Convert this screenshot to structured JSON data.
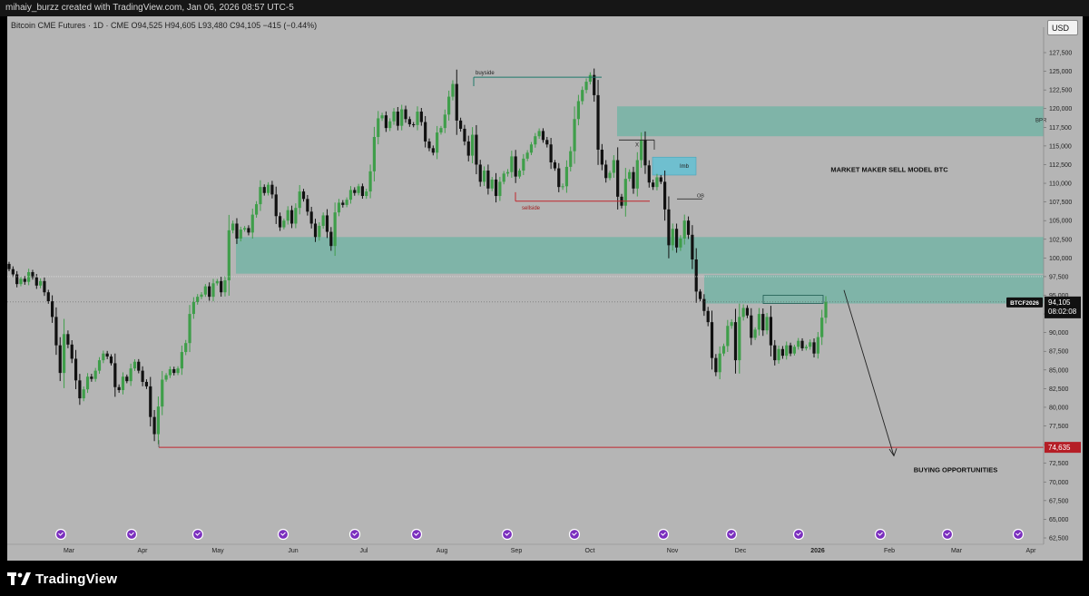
{
  "header": {
    "author_line": "mihaiy_burzz created with TradingView.com, Jan 06, 2026 08:57 UTC-5"
  },
  "symbol": {
    "info_line": "Bitcoin CME Futures · 1D · CME  O94,525  H94,605  L93,480  C94,105  −415 (−0.44%)"
  },
  "currency_button": "USD",
  "footer": {
    "logo_text": "TradingView"
  },
  "chart_data": {
    "type": "candlestick",
    "title": "Bitcoin CME Futures · 1D · CME",
    "ohlc_last": {
      "open": 94525,
      "high": 94605,
      "low": 93480,
      "close": 94105,
      "change": -415,
      "change_pct": -0.44
    },
    "ylim": [
      61500,
      131000
    ],
    "y_ticks": [
      62500,
      65000,
      67500,
      70000,
      72500,
      75000,
      77500,
      80000,
      82500,
      85000,
      87500,
      90000,
      92500,
      95000,
      97500,
      100000,
      102500,
      105000,
      107500,
      110000,
      112500,
      115000,
      117500,
      120000,
      122500,
      125000,
      127500
    ],
    "x_labels": [
      "Mar",
      "Apr",
      "May",
      "Jun",
      "Jul",
      "Aug",
      "Sep",
      "Oct",
      "Nov",
      "Dec",
      "2026",
      "Feb",
      "Mar",
      "Apr"
    ],
    "approx_daily_closes": [
      {
        "month": "Feb 2025",
        "closes": [
          98500,
          97800,
          96500,
          97200,
          96800,
          98100,
          97400,
          96300,
          96900,
          95400,
          94200,
          92100,
          88300
        ]
      },
      {
        "month": "Mar",
        "closes": [
          84600,
          89800,
          88400,
          86500,
          83600,
          81200,
          82400,
          84100,
          83800,
          84900,
          86300,
          87200,
          86800,
          85900,
          82700,
          82300,
          84100,
          83500
        ]
      },
      {
        "month": "Apr",
        "closes": [
          85200,
          86100,
          84900,
          83400,
          82800,
          78700,
          76400,
          80100,
          83700,
          84300,
          85100,
          84600,
          85200,
          87400,
          88600,
          92500,
          94100,
          94800,
          95100,
          96200
        ]
      },
      {
        "month": "May",
        "closes": [
          94800,
          96600,
          96900,
          95400,
          97000,
          103700,
          104600,
          102600,
          103800,
          104000,
          103400,
          105800,
          107200,
          109500,
          108700,
          109800,
          108500,
          105600,
          104100
        ]
      },
      {
        "month": "Jun",
        "closes": [
          105000,
          106400,
          104600,
          106700,
          108900,
          107900,
          106200,
          104600,
          102800,
          104300,
          105700,
          103500,
          101600,
          106100,
          107400,
          107100,
          107800,
          109100,
          108700
        ]
      },
      {
        "month": "Jul",
        "closes": [
          109600,
          108300,
          108900,
          111600,
          116200,
          118700,
          119100,
          117400,
          118300,
          119600,
          117700,
          119900,
          118600,
          117900,
          117800,
          119600,
          118200
        ]
      },
      {
        "month": "Aug",
        "closes": [
          115600,
          114700,
          114100,
          116800,
          117400,
          119200,
          121600,
          123300,
          118400,
          117300,
          115600,
          113700,
          116500,
          112500,
          110200,
          111700,
          109300,
          110500,
          108300
        ]
      },
      {
        "month": "Sep",
        "closes": [
          110200,
          111300,
          111500,
          113600,
          110900,
          111700,
          113300,
          114100,
          115200,
          116300,
          117000,
          115800,
          115200,
          112800,
          112000,
          109500,
          109600,
          112200,
          114300
        ]
      },
      {
        "month": "Oct",
        "closes": [
          118600,
          121000,
          122500,
          123600,
          124500,
          121800,
          114500,
          112500,
          110700,
          111400,
          113100,
          108200,
          107000,
          110600,
          111500,
          109300,
          113100,
          115800,
          112400,
          110100,
          109500
        ]
      },
      {
        "month": "Nov",
        "closes": [
          110800,
          110200,
          106500,
          101700,
          103900,
          101400,
          102600,
          105000,
          103100,
          99800,
          95500,
          94500,
          92900,
          91400,
          86600,
          84700,
          87200,
          88200,
          90900,
          91400
        ]
      },
      {
        "month": "Dec",
        "closes": [
          86300,
          92100,
          93300,
          92300,
          89300,
          90400,
          92500,
          90300,
          92100,
          88300,
          86300,
          87800,
          86900,
          88300,
          87200,
          88100,
          88900,
          87900,
          88100,
          88700,
          87200,
          89400,
          92000,
          94105
        ]
      }
    ],
    "zones": [
      {
        "label": "BPR",
        "top": 120300,
        "bottom": 116300
      },
      {
        "label": "Imb",
        "top": 113500,
        "bottom": 111100
      },
      {
        "label": "",
        "top": 102800,
        "bottom": 97900
      },
      {
        "label": "",
        "top": 97700,
        "bottom": 93900
      }
    ],
    "annotations": [
      {
        "text": "buyside",
        "price": 124200
      },
      {
        "text": "sellside",
        "price": 107600
      },
      {
        "text": "X",
        "price": 115800
      },
      {
        "text": "OB",
        "price": 107900
      },
      {
        "text": "MARKET MAKER SELL MODEL BTC"
      },
      {
        "text": "BUYING OPPORTUNITIES"
      }
    ],
    "horizontal_lines": [
      {
        "price": 74635,
        "color": "#c0262d"
      }
    ],
    "price_tags": [
      {
        "symbol": "BTCF2026",
        "price": "94,105",
        "countdown": "08:02:08"
      },
      {
        "price": "74,635"
      }
    ],
    "colors": {
      "bg": "#b5b5b5",
      "up": "#3f9e4a",
      "down": "#111111",
      "zone": "#7fb4a8",
      "imb": "#6fbfcf",
      "level": "#c0262d"
    }
  }
}
